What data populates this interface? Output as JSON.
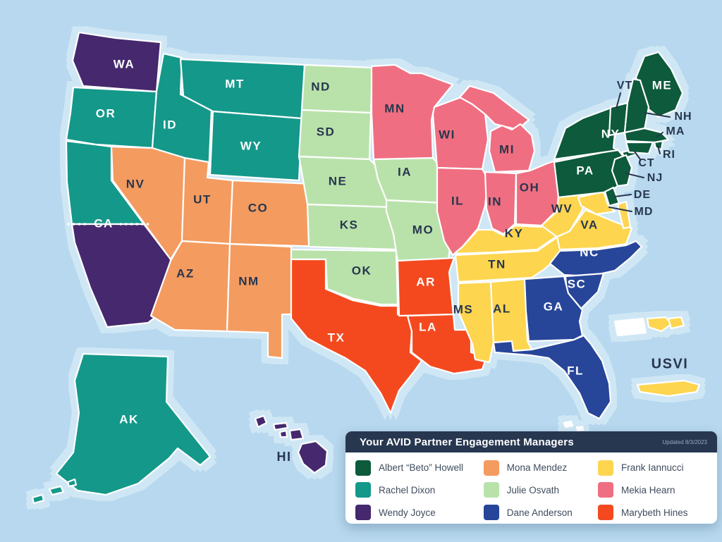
{
  "legend": {
    "header": "Your AVID Partner Engagement Managers",
    "updated": "Updated 8/3/2023",
    "managers": [
      {
        "name": "Albert “Beto” Howell",
        "color": "#0d5a3c",
        "label_color": "#ffffff"
      },
      {
        "name": "Rachel Dixon",
        "color": "#14988a",
        "label_color": "#ffffff"
      },
      {
        "name": "Wendy Joyce",
        "color": "#45286d",
        "label_color": "#ffffff"
      },
      {
        "name": "Mona Mendez",
        "color": "#f49b60",
        "label_color": "#27364e"
      },
      {
        "name": "Julie Osvath",
        "color": "#b9e2ab",
        "label_color": "#27364e"
      },
      {
        "name": "Dane Anderson",
        "color": "#27469a",
        "label_color": "#ffffff"
      },
      {
        "name": "Frank Iannucci",
        "color": "#fdd54f",
        "label_color": "#27364e"
      },
      {
        "name": "Mekia Hearn",
        "color": "#f06e81",
        "label_color": "#27364e"
      },
      {
        "name": "Marybeth Hines",
        "color": "#f4491f",
        "label_color": "#ffffff"
      }
    ]
  },
  "map": {
    "ca_label": "CA",
    "water_labels": {
      "hi": "HI",
      "usvi": "USVI"
    },
    "regions": [
      {
        "code": "WA",
        "label": "WA",
        "manager": "Wendy Joyce"
      },
      {
        "code": "OR",
        "label": "OR",
        "manager": "Rachel Dixon"
      },
      {
        "code": "ID",
        "label": "ID",
        "manager": "Rachel Dixon"
      },
      {
        "code": "MT",
        "label": "MT",
        "manager": "Rachel Dixon"
      },
      {
        "code": "WY",
        "label": "WY",
        "manager": "Rachel Dixon"
      },
      {
        "code": "CAN",
        "label": "",
        "manager": "Rachel Dixon"
      },
      {
        "code": "CAS",
        "label": "",
        "manager": "Wendy Joyce"
      },
      {
        "code": "NV",
        "label": "NV",
        "manager": "Mona Mendez"
      },
      {
        "code": "UT",
        "label": "UT",
        "manager": "Mona Mendez"
      },
      {
        "code": "CO",
        "label": "CO",
        "manager": "Mona Mendez"
      },
      {
        "code": "AZ",
        "label": "AZ",
        "manager": "Mona Mendez"
      },
      {
        "code": "NM",
        "label": "NM",
        "manager": "Mona Mendez"
      },
      {
        "code": "ND",
        "label": "ND",
        "manager": "Julie Osvath"
      },
      {
        "code": "SD",
        "label": "SD",
        "manager": "Julie Osvath"
      },
      {
        "code": "NE",
        "label": "NE",
        "manager": "Julie Osvath"
      },
      {
        "code": "KS",
        "label": "KS",
        "manager": "Julie Osvath"
      },
      {
        "code": "OK",
        "label": "OK",
        "manager": "Julie Osvath"
      },
      {
        "code": "IA",
        "label": "IA",
        "manager": "Julie Osvath"
      },
      {
        "code": "MO",
        "label": "MO",
        "manager": "Julie Osvath"
      },
      {
        "code": "MN",
        "label": "MN",
        "manager": "Mekia Hearn"
      },
      {
        "code": "WI",
        "label": "WI",
        "manager": "Mekia Hearn"
      },
      {
        "code": "MIUP",
        "label": "",
        "manager": "Mekia Hearn"
      },
      {
        "code": "MI",
        "label": "MI",
        "manager": "Mekia Hearn"
      },
      {
        "code": "IL",
        "label": "IL",
        "manager": "Mekia Hearn"
      },
      {
        "code": "IN",
        "label": "IN",
        "manager": "Mekia Hearn"
      },
      {
        "code": "OH",
        "label": "OH",
        "manager": "Mekia Hearn"
      },
      {
        "code": "TX",
        "label": "TX",
        "manager": "Marybeth Hines"
      },
      {
        "code": "AR",
        "label": "AR",
        "manager": "Marybeth Hines"
      },
      {
        "code": "LA",
        "label": "LA",
        "manager": "Marybeth Hines"
      },
      {
        "code": "KY",
        "label": "KY",
        "manager": "Frank Iannucci"
      },
      {
        "code": "TN",
        "label": "TN",
        "manager": "Frank Iannucci"
      },
      {
        "code": "MS",
        "label": "MS",
        "manager": "Frank Iannucci"
      },
      {
        "code": "AL",
        "label": "AL",
        "manager": "Frank Iannucci"
      },
      {
        "code": "WV",
        "label": "WV",
        "manager": "Frank Iannucci"
      },
      {
        "code": "VA",
        "label": "VA",
        "manager": "Frank Iannucci"
      },
      {
        "code": "MD",
        "label": "MD",
        "manager": "Frank Iannucci",
        "callout": true
      },
      {
        "code": "NC",
        "label": "NC",
        "manager": "Dane Anderson"
      },
      {
        "code": "SC",
        "label": "SC",
        "manager": "Dane Anderson"
      },
      {
        "code": "GA",
        "label": "GA",
        "manager": "Dane Anderson"
      },
      {
        "code": "FL",
        "label": "FL",
        "manager": "Dane Anderson"
      },
      {
        "code": "PA",
        "label": "PA",
        "manager": "Albert “Beto” Howell"
      },
      {
        "code": "NY",
        "label": "NY",
        "manager": "Albert “Beto” Howell"
      },
      {
        "code": "NYLI",
        "label": "",
        "manager": "Albert “Beto” Howell"
      },
      {
        "code": "ME",
        "label": "ME",
        "manager": "Albert “Beto” Howell"
      },
      {
        "code": "VT",
        "label": "VT",
        "manager": "Albert “Beto” Howell",
        "callout": true
      },
      {
        "code": "NH",
        "label": "NH",
        "manager": "Albert “Beto” Howell",
        "callout": true
      },
      {
        "code": "MA",
        "label": "MA",
        "manager": "Albert “Beto” Howell",
        "callout": true
      },
      {
        "code": "RI",
        "label": "RI",
        "manager": "Albert “Beto” Howell",
        "callout": true
      },
      {
        "code": "CT",
        "label": "CT",
        "manager": "Albert “Beto” Howell",
        "callout": true
      },
      {
        "code": "NJ",
        "label": "NJ",
        "manager": "Albert “Beto” Howell",
        "callout": true
      },
      {
        "code": "DE",
        "label": "DE",
        "manager": "Albert “Beto” Howell",
        "callout": true
      },
      {
        "code": "AK",
        "label": "AK",
        "manager": "Rachel Dixon"
      },
      {
        "code": "AKI",
        "label": "",
        "manager": "Rachel Dixon"
      },
      {
        "code": "HI1",
        "label": "",
        "manager": "Wendy Joyce"
      },
      {
        "code": "HI2",
        "label": "",
        "manager": "Wendy Joyce"
      },
      {
        "code": "HI3",
        "label": "",
        "manager": "Wendy Joyce"
      },
      {
        "code": "HI4",
        "label": "",
        "manager": "Wendy Joyce"
      },
      {
        "code": "HI5",
        "label": "",
        "manager": "Wendy Joyce"
      },
      {
        "code": "USVI1",
        "label": "",
        "manager": "Frank Iannucci"
      },
      {
        "code": "USVI2",
        "label": "",
        "manager": "Frank Iannucci"
      },
      {
        "code": "USVI3",
        "label": "",
        "manager": "Frank Iannucci"
      },
      {
        "code": "PR",
        "label": "",
        "fill": "#ffffff"
      },
      {
        "code": "KEYS",
        "label": "",
        "fill": "#ffffff"
      }
    ]
  }
}
